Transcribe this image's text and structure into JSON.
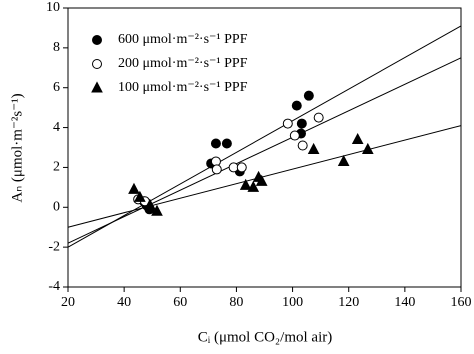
{
  "chart_data": {
    "type": "scatter",
    "xlabel": "Cᵢ (μmol CO₂/mol air)",
    "ylabel": "Aₙ (μmol·m⁻²s⁻¹)",
    "xlim": [
      20,
      160
    ],
    "xticks": [
      20,
      40,
      60,
      80,
      100,
      120,
      140,
      160
    ],
    "ylim": [
      -4,
      10
    ],
    "yticks": [
      -4,
      -2,
      0,
      2,
      4,
      6,
      8,
      10
    ],
    "legend": "upper left",
    "series": [
      {
        "name": "600 μmol·m⁻²·s⁻¹ PPF",
        "marker": "circle",
        "color": "#000000",
        "filled": true,
        "x": [
          47,
          48,
          49,
          71,
          72.7,
          76.6,
          81.2,
          101.5,
          103,
          103.3,
          105.8
        ],
        "y": [
          0.3,
          0.1,
          -0.1,
          2.2,
          3.2,
          3.2,
          1.8,
          5.1,
          3.7,
          4.2,
          5.6
        ],
        "trend": {
          "x": [
            20,
            160
          ],
          "y": [
            -2.0,
            9.1
          ]
        }
      },
      {
        "name": "200 μmol·m⁻²·s⁻¹ PPF",
        "marker": "circle",
        "color": "#000000",
        "filled": false,
        "x": [
          45,
          47.4,
          72.7,
          73,
          79,
          81.9,
          98.3,
          100.8,
          103.6,
          109.3
        ],
        "y": [
          0.4,
          0.3,
          2.3,
          1.9,
          2.0,
          2.0,
          4.2,
          3.6,
          3.1,
          4.5
        ],
        "trend": {
          "x": [
            20,
            160
          ],
          "y": [
            -1.8,
            7.5
          ]
        }
      },
      {
        "name": "100 μmol·m⁻²·s⁻¹ PPF",
        "marker": "triangle",
        "color": "#000000",
        "filled": true,
        "x": [
          43.5,
          45.6,
          49.2,
          51.7,
          83.3,
          86,
          87.9,
          89,
          107.5,
          118.2,
          123.2,
          126.8
        ],
        "y": [
          0.9,
          0.5,
          0.1,
          -0.2,
          1.1,
          1.0,
          1.5,
          1.3,
          2.9,
          2.3,
          3.4,
          2.9
        ],
        "trend": {
          "x": [
            20,
            160
          ],
          "y": [
            -1.0,
            4.1
          ]
        }
      }
    ]
  }
}
